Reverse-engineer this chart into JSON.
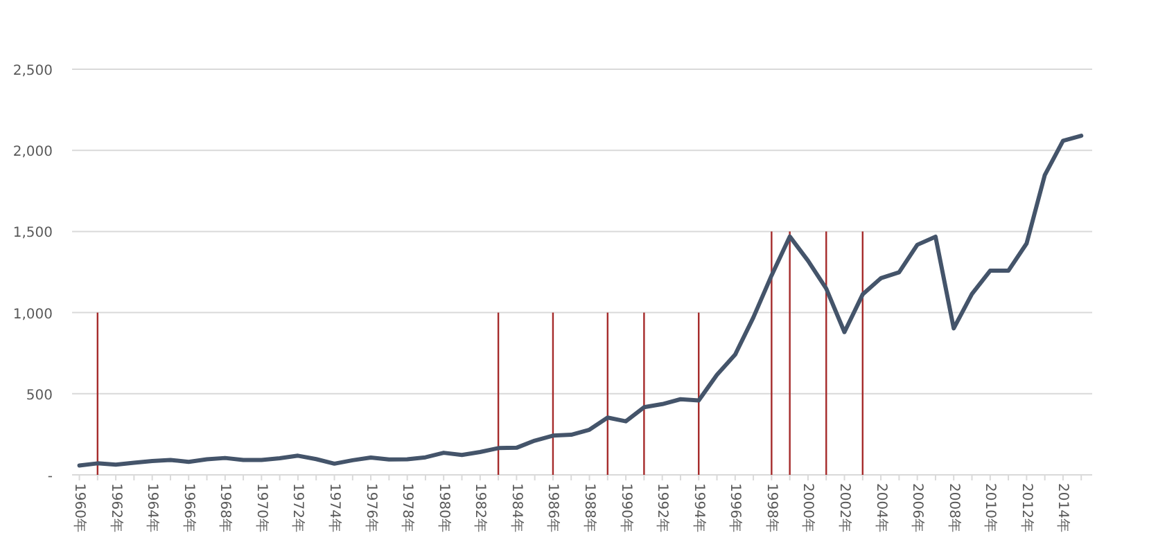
{
  "chart_data": {
    "type": "line",
    "x": [
      1960,
      1961,
      1962,
      1963,
      1964,
      1965,
      1966,
      1967,
      1968,
      1969,
      1970,
      1971,
      1972,
      1973,
      1974,
      1975,
      1976,
      1977,
      1978,
      1979,
      1980,
      1981,
      1982,
      1983,
      1984,
      1985,
      1986,
      1987,
      1988,
      1989,
      1990,
      1991,
      1992,
      1993,
      1994,
      1995,
      1996,
      1997,
      1998,
      1999,
      2000,
      2001,
      2002,
      2003,
      2004,
      2005,
      2006,
      2007,
      2008,
      2009,
      2010,
      2011,
      2012,
      2013,
      2014,
      2015
    ],
    "series": [
      {
        "color": "#44546a",
        "values": [
          58,
          71,
          63,
          75,
          85,
          92,
          80,
          96,
          104,
          92,
          92,
          102,
          118,
          97,
          69,
          90,
          107,
          95,
          96,
          108,
          136,
          123,
          141,
          165,
          167,
          211,
          242,
          247,
          278,
          353,
          330,
          417,
          436,
          466,
          459,
          616,
          741,
          970,
          1229,
          1469,
          1320,
          1148,
          880,
          1112,
          1212,
          1248,
          1418,
          1468,
          903,
          1115,
          1258,
          1258,
          1426,
          1848,
          2059,
          2090
        ]
      },
      {
        "type": "bar",
        "color": "#a52a2a",
        "x": [
          1961,
          1983,
          1986,
          1989,
          1991,
          1994,
          1998,
          1999,
          2001,
          2003
        ],
        "values": [
          1000,
          1000,
          1000,
          1000,
          1000,
          1000,
          1500,
          1500,
          1500,
          1500
        ]
      }
    ],
    "xlim": [
      1959.6,
      2015.6
    ],
    "xticks": [
      {
        "value": 1960,
        "label": "1960年"
      },
      {
        "value": 1961,
        "label": null
      },
      {
        "value": 1962,
        "label": "1962年"
      },
      {
        "value": 1963,
        "label": null
      },
      {
        "value": 1964,
        "label": "1964年"
      },
      {
        "value": 1965,
        "label": null
      },
      {
        "value": 1966,
        "label": "1966年"
      },
      {
        "value": 1967,
        "label": null
      },
      {
        "value": 1968,
        "label": "1968年"
      },
      {
        "value": 1969,
        "label": null
      },
      {
        "value": 1970,
        "label": "1970年"
      },
      {
        "value": 1971,
        "label": null
      },
      {
        "value": 1972,
        "label": "1972年"
      },
      {
        "value": 1973,
        "label": null
      },
      {
        "value": 1974,
        "label": "1974年"
      },
      {
        "value": 1975,
        "label": null
      },
      {
        "value": 1976,
        "label": "1976年"
      },
      {
        "value": 1977,
        "label": null
      },
      {
        "value": 1978,
        "label": "1978年"
      },
      {
        "value": 1979,
        "label": null
      },
      {
        "value": 1980,
        "label": "1980年"
      },
      {
        "value": 1981,
        "label": null
      },
      {
        "value": 1982,
        "label": "1982年"
      },
      {
        "value": 1983,
        "label": null
      },
      {
        "value": 1984,
        "label": "1984年"
      },
      {
        "value": 1985,
        "label": null
      },
      {
        "value": 1986,
        "label": "1986年"
      },
      {
        "value": 1987,
        "label": null
      },
      {
        "value": 1988,
        "label": "1988年"
      },
      {
        "value": 1989,
        "label": null
      },
      {
        "value": 1990,
        "label": "1990年"
      },
      {
        "value": 1991,
        "label": null
      },
      {
        "value": 1992,
        "label": "1992年"
      },
      {
        "value": 1993,
        "label": null
      },
      {
        "value": 1994,
        "label": "1994年"
      },
      {
        "value": 1995,
        "label": null
      },
      {
        "value": 1996,
        "label": "1996年"
      },
      {
        "value": 1997,
        "label": null
      },
      {
        "value": 1998,
        "label": "1998年"
      },
      {
        "value": 1999,
        "label": null
      },
      {
        "value": 2000,
        "label": "2000年"
      },
      {
        "value": 2001,
        "label": null
      },
      {
        "value": 2002,
        "label": "2002年"
      },
      {
        "value": 2003,
        "label": null
      },
      {
        "value": 2004,
        "label": "2004年"
      },
      {
        "value": 2005,
        "label": null
      },
      {
        "value": 2006,
        "label": "2006年"
      },
      {
        "value": 2007,
        "label": null
      },
      {
        "value": 2008,
        "label": "2008年"
      },
      {
        "value": 2009,
        "label": null
      },
      {
        "value": 2010,
        "label": "2010年"
      },
      {
        "value": 2011,
        "label": null
      },
      {
        "value": 2012,
        "label": "2012年"
      },
      {
        "value": 2013,
        "label": null
      },
      {
        "value": 2014,
        "label": "2014年"
      },
      {
        "value": 2015,
        "label": null
      }
    ],
    "ylim": [
      0,
      2500
    ],
    "yticks": [
      {
        "value": 0,
        "label": "-"
      },
      500,
      {
        "value": 1000,
        "label": "1,000"
      },
      {
        "value": 1500,
        "label": "1,500"
      },
      {
        "value": 2000,
        "label": "2,000"
      },
      {
        "value": 2500,
        "label": "2,500"
      }
    ],
    "grid": "y",
    "marker": "none"
  }
}
